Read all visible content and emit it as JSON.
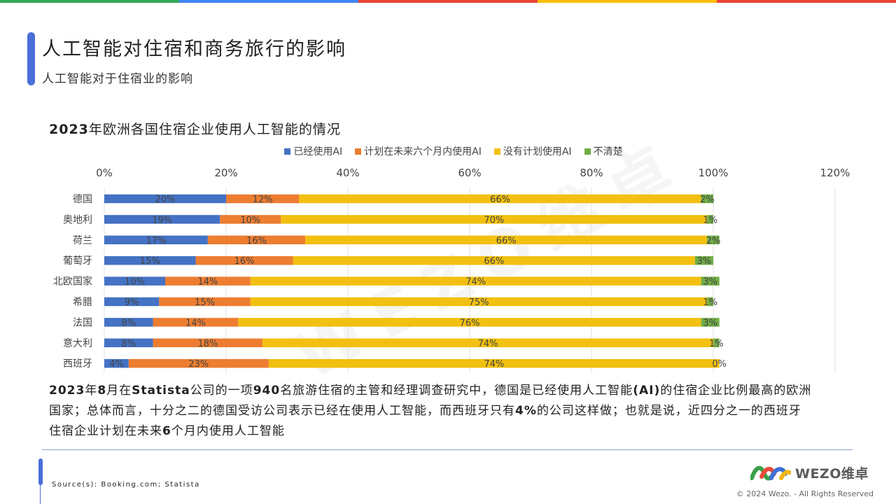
{
  "colors": {
    "top_stripes": [
      "#34a853",
      "#4285f4",
      "#ea4335",
      "#fbbc05",
      "#ea4335"
    ],
    "series": [
      "#4472c4",
      "#ed7d31",
      "#f2c010",
      "#70ad47"
    ],
    "accent": "#4a6fd8"
  },
  "header": {
    "title": "人工智能对住宿和商务旅行的影响",
    "subtitle": "人工智能对于住宿业的影响"
  },
  "chart_data": {
    "type": "bar",
    "orientation": "horizontal",
    "stacked": true,
    "title_bold": "2023",
    "title_rest": "年欧洲各国住宿企业使用人工智能的情况",
    "categories": [
      "德国",
      "奥地利",
      "荷兰",
      "葡萄牙",
      "北欧国家",
      "希腊",
      "法国",
      "意大利",
      "西班牙"
    ],
    "series": [
      {
        "name": "已经使用AI",
        "values": [
          20,
          19,
          17,
          15,
          10,
          9,
          8,
          8,
          4
        ]
      },
      {
        "name": "计划在未来六个月内使用AI",
        "values": [
          12,
          10,
          16,
          16,
          14,
          15,
          14,
          18,
          23
        ]
      },
      {
        "name": "没有计划使用AI",
        "values": [
          66,
          70,
          66,
          66,
          74,
          75,
          76,
          74,
          74
        ]
      },
      {
        "name": "不清楚",
        "values": [
          2,
          1,
          2,
          3,
          3,
          1,
          3,
          1,
          0
        ]
      }
    ],
    "xlim": [
      0,
      120
    ],
    "xticks": [
      0,
      20,
      40,
      60,
      80,
      100,
      120
    ],
    "tick_suffix": "%",
    "axis_position": "top",
    "grid": true,
    "legend_position": "top"
  },
  "watermark": "WEZO维卓",
  "paragraph": [
    {
      "t": "2023",
      "b": true
    },
    {
      "t": "年",
      "b": false
    },
    {
      "t": "8",
      "b": true
    },
    {
      "t": "月在",
      "b": false
    },
    {
      "t": "Statista",
      "b": true
    },
    {
      "t": "公司的一项",
      "b": false
    },
    {
      "t": "940",
      "b": true
    },
    {
      "t": "名旅游住宿的主管和经理调查研究中，德国是已经使用人工智能",
      "b": false
    },
    {
      "t": "(AI)",
      "b": true
    },
    {
      "t": "的住宿企业比例最高的欧洲国家；总体而言，十分之二的德国受访公司表示已经在使用人工智能，而西班牙只有",
      "b": false
    },
    {
      "t": "4%",
      "b": true
    },
    {
      "t": "的公司这样做；也就是说，近四分之一的西班牙住宿企业计划在未来",
      "b": false
    },
    {
      "t": "6",
      "b": true
    },
    {
      "t": "个月内使用人工智能",
      "b": false
    }
  ],
  "footer": {
    "source": "Source(s): Booking.com; Statista",
    "logo_text": "WEZO维卓",
    "copyright": "© 2024 Wezo. - All Rights Reserved"
  }
}
